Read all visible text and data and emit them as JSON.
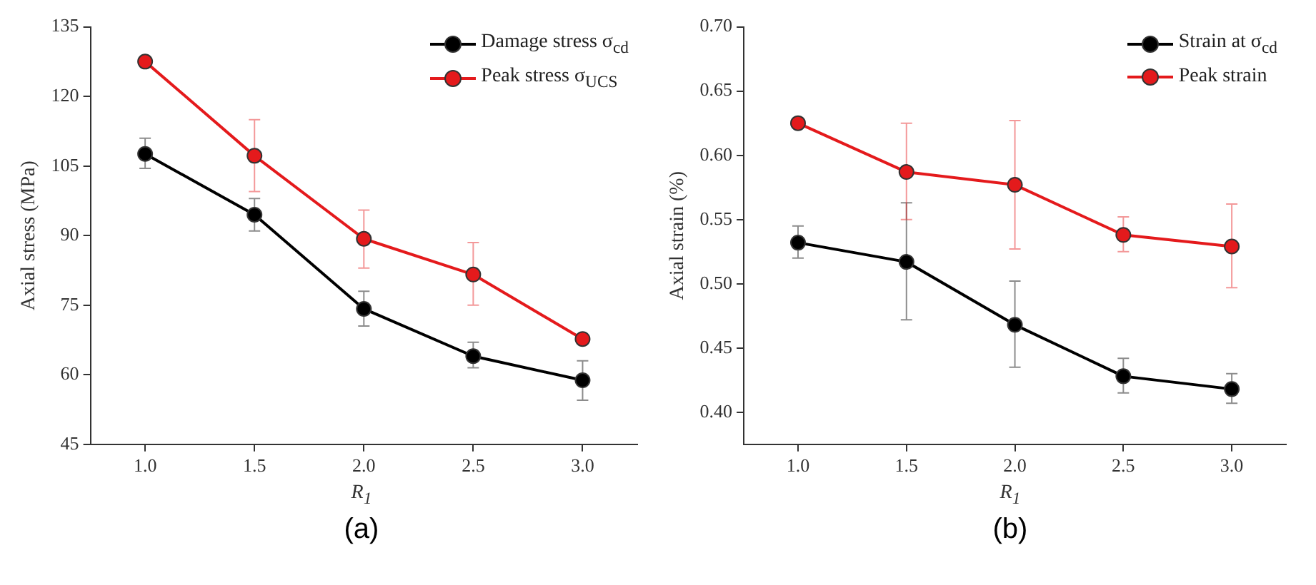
{
  "chart_data": [
    {
      "type": "line",
      "x": [
        1,
        1.5,
        2,
        2.5,
        3
      ],
      "xlabel": "R$_{1}$",
      "ylabel": "Axial stress (MPa)",
      "xlim": [
        0.75,
        3.25
      ],
      "xticks": [
        {
          "value": 1,
          "label": "1.0"
        },
        {
          "value": 1.5,
          "label": "1.5"
        },
        {
          "value": 2,
          "label": "2.0"
        },
        {
          "value": 2.5,
          "label": "2.5"
        },
        {
          "value": 3,
          "label": "3.0"
        }
      ],
      "ylim": [
        45,
        135
      ],
      "yticks": [
        45,
        60,
        75,
        90,
        105,
        120,
        135
      ],
      "grid": false,
      "legend": "top right",
      "marker": "circle",
      "line_style": "solid",
      "annotations": [
        "(a)"
      ],
      "series": [
        {
          "name": "Damage stress σ$_{cd}$",
          "color": "#000000",
          "values": [
            107.6,
            94.5,
            74.2,
            64.0,
            58.8
          ],
          "errors": [
            [
              104.5,
              111
            ],
            [
              91,
              98
            ],
            [
              70.5,
              78
            ],
            [
              61.5,
              67
            ],
            [
              54.5,
              63
            ]
          ]
        },
        {
          "name": "Peak stress σ$_{UCS}$",
          "color": "#e41a1c",
          "values": [
            127.5,
            107.2,
            89.3,
            81.6,
            67.7
          ],
          "errors": [
            null,
            [
              99.5,
              115
            ],
            [
              83,
              95.5
            ],
            [
              75,
              88.5
            ],
            null
          ]
        }
      ]
    },
    {
      "type": "line",
      "x": [
        1,
        1.5,
        2,
        2.5,
        3
      ],
      "xlabel": "R$_{1}$",
      "ylabel": "Axial strain (%)",
      "xlim": [
        0.75,
        3.25
      ],
      "xticks": [
        {
          "value": 1,
          "label": "1.0"
        },
        {
          "value": 1.5,
          "label": "1.5"
        },
        {
          "value": 2,
          "label": "2.0"
        },
        {
          "value": 2.5,
          "label": "2.5"
        },
        {
          "value": 3,
          "label": "3.0"
        }
      ],
      "ylim": [
        0.375,
        0.7
      ],
      "yticks": [
        {
          "value": 0.4,
          "label": "0.40"
        },
        {
          "value": 0.45,
          "label": "0.45"
        },
        {
          "value": 0.5,
          "label": "0.50"
        },
        {
          "value": 0.55,
          "label": "0.55"
        },
        {
          "value": 0.6,
          "label": "0.60"
        },
        {
          "value": 0.65,
          "label": "0.65"
        },
        {
          "value": 0.7,
          "label": "0.70"
        }
      ],
      "grid": false,
      "legend": "top right",
      "marker": "circle",
      "line_style": "solid",
      "annotations": [
        "(b)"
      ],
      "series": [
        {
          "name": "Strain at σ$_{cd}$",
          "color": "#000000",
          "values": [
            0.532,
            0.517,
            0.468,
            0.428,
            0.418
          ],
          "errors": [
            [
              0.52,
              0.545
            ],
            [
              0.472,
              0.563
            ],
            [
              0.435,
              0.502
            ],
            [
              0.415,
              0.442
            ],
            [
              0.407,
              0.43
            ]
          ]
        },
        {
          "name": "Peak strain",
          "color": "#e41a1c",
          "values": [
            0.625,
            0.587,
            0.577,
            0.538,
            0.529
          ],
          "errors": [
            null,
            [
              0.55,
              0.625
            ],
            [
              0.527,
              0.627
            ],
            [
              0.525,
              0.552
            ],
            [
              0.497,
              0.562
            ]
          ]
        }
      ]
    }
  ]
}
